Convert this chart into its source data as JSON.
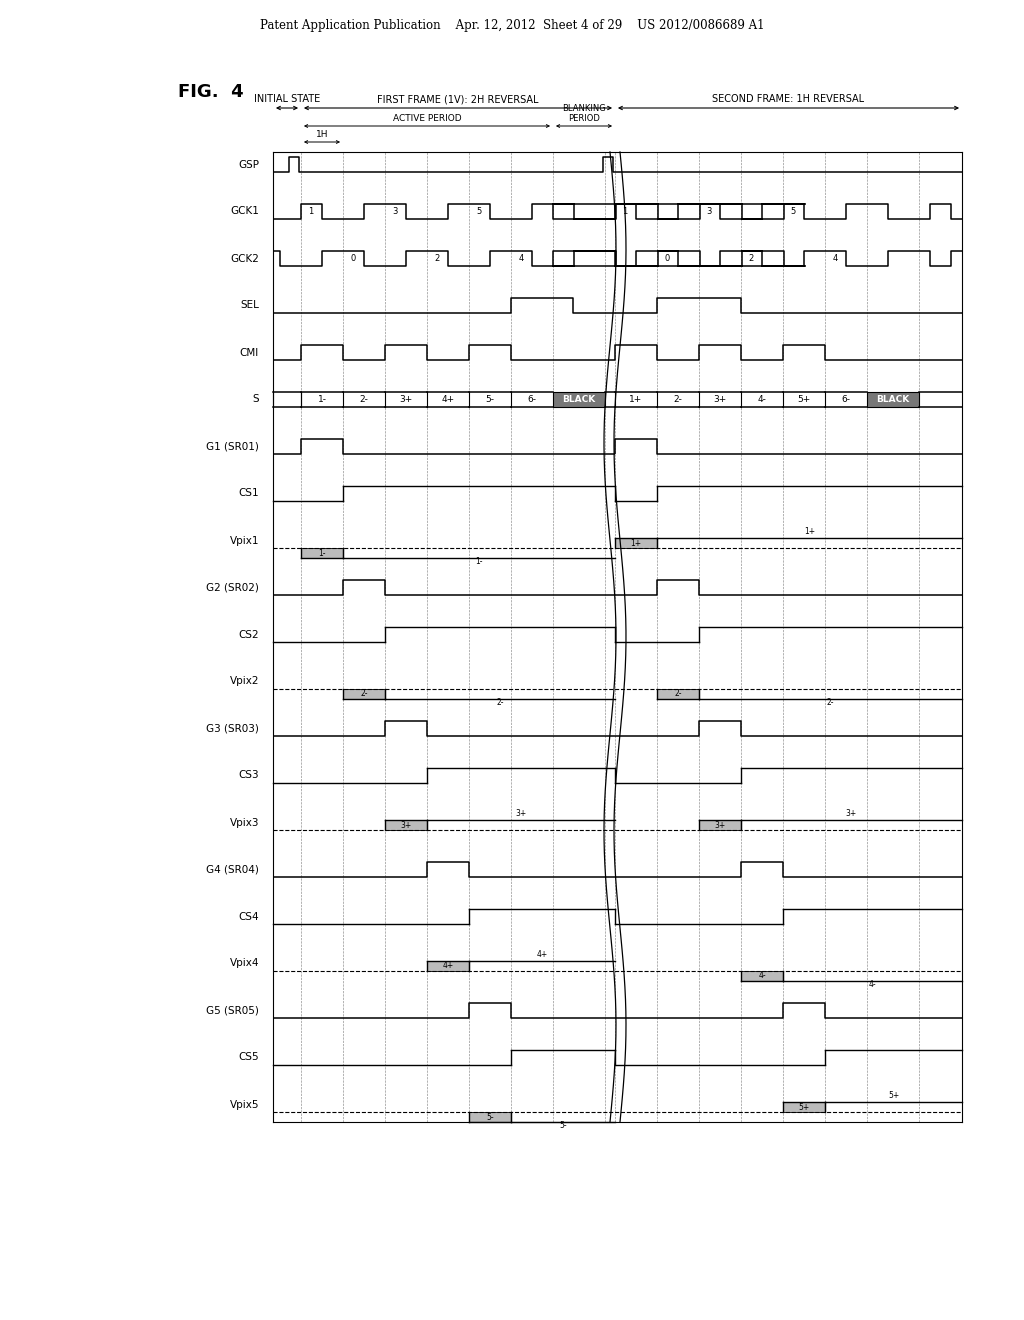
{
  "fig_label": "FIG.  4",
  "patent_header": "Patent Application Publication    Apr. 12, 2012  Sheet 4 of 29    US 2012/0086689 A1",
  "signals": [
    "GSP",
    "GCK1",
    "GCK2",
    "SEL",
    "CMI",
    "S",
    "G1 (SR01)",
    "CS1",
    "Vpix1",
    "G2 (SR02)",
    "CS2",
    "Vpix2",
    "G3 (SR03)",
    "CS3",
    "Vpix3",
    "G4 (SR04)",
    "CS4",
    "Vpix4",
    "G5 (SR05)",
    "CS5",
    "Vpix5"
  ],
  "header_labels": [
    "INITIAL STATE",
    "FIRST FRAME (1V): 2H REVERSAL",
    "SECOND FRAME: 1H REVERSAL"
  ],
  "active_label": "ACTIVE PERIOD",
  "blanking_label": "BLANKING\nPERIOD",
  "one_h_label": "1H",
  "s_labels_ff": [
    "1-",
    "2-",
    "3+",
    "4+",
    "5-",
    "6-"
  ],
  "s_labels_sf": [
    "1+",
    "2-",
    "3+",
    "4-",
    "5+",
    "6-"
  ],
  "black_label": "BLACK",
  "gck1_labels_ff": [
    "1",
    "3",
    "5"
  ],
  "gck1_labels_sf": [
    "1",
    "3",
    "5"
  ],
  "gck2_labels_ff": [
    "0",
    "2",
    "4"
  ],
  "gck2_labels_sf": [
    "0",
    "2",
    "4"
  ],
  "background_color": "#ffffff",
  "row_configs": [
    [
      0,
      1,
      0,
      1,
      "1-",
      "1-",
      "1+",
      "1+",
      -1,
      1
    ],
    [
      1,
      2,
      1,
      2,
      "2-",
      "2-",
      "2-",
      "2-",
      -1,
      -1
    ],
    [
      2,
      3,
      2,
      3,
      "3+",
      "3+",
      "3+",
      "3+",
      1,
      1
    ],
    [
      3,
      4,
      3,
      4,
      "4+",
      "4+",
      "4-",
      "4-",
      1,
      -1
    ],
    [
      4,
      5,
      4,
      5,
      "5-",
      "5-",
      "5+",
      "5+",
      -1,
      1
    ]
  ]
}
